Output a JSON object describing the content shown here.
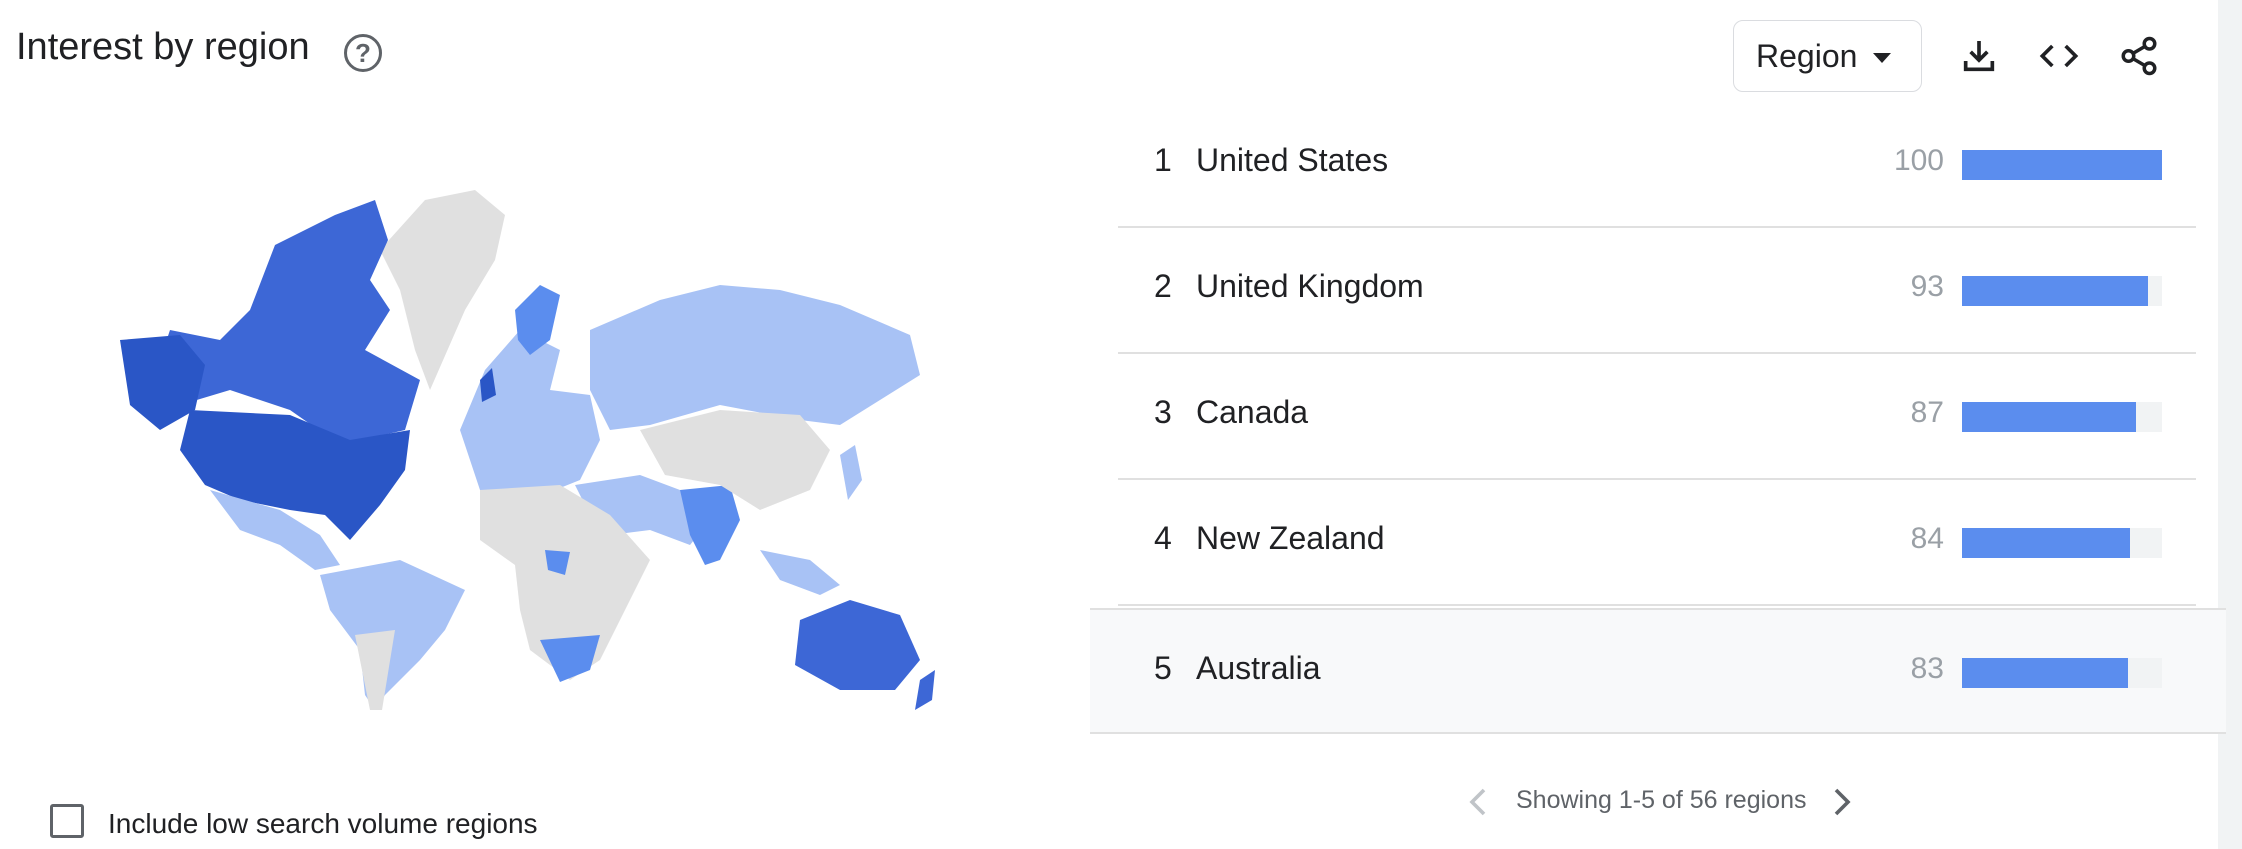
{
  "header": {
    "title": "Interest by region",
    "help_icon": "help-circle-icon",
    "region_selector": {
      "selected": "Region",
      "icon": "dropdown-arrow-icon"
    },
    "actions": [
      {
        "name": "download",
        "icon": "download-icon"
      },
      {
        "name": "embed",
        "icon": "code-icon"
      },
      {
        "name": "share",
        "icon": "share-icon"
      }
    ]
  },
  "map": {
    "legend_colors": {
      "high": "#2a56c6",
      "mid": "#5b8dee",
      "low": "#a8c2f5",
      "none": "#e0e0e0"
    }
  },
  "regions": [
    {
      "rank": "1",
      "name": "United States",
      "value": "100",
      "fraction": 1.0
    },
    {
      "rank": "2",
      "name": "United Kingdom",
      "value": "93",
      "fraction": 0.93
    },
    {
      "rank": "3",
      "name": "Canada",
      "value": "87",
      "fraction": 0.87
    },
    {
      "rank": "4",
      "name": "New Zealand",
      "value": "84",
      "fraction": 0.84
    },
    {
      "rank": "5",
      "name": "Australia",
      "value": "83",
      "fraction": 0.83
    }
  ],
  "options": {
    "low_volume_label": "Include low search volume regions",
    "low_volume_checked": false
  },
  "pagination": {
    "text": "Showing 1-5 of 56 regions",
    "prev_icon": "chevron-left-icon",
    "next_icon": "chevron-right-icon"
  },
  "colors": {
    "bar": "#5b8dee",
    "track": "#f1f3f4",
    "text": "#202124",
    "muted": "#9aa0a6"
  }
}
